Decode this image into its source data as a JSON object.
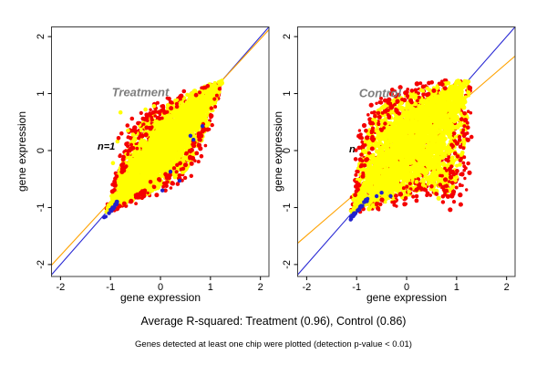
{
  "figure": {
    "background": "#ffffff"
  },
  "captions": {
    "r_squared": "Average R-squared: Treatment (0.96), Control (0.86)",
    "note": "Genes detected at least one chip were plotted (detection p-value < 0.01)"
  },
  "chart_data": [
    {
      "type": "scatter",
      "title": "Treatment",
      "title_color": "#7d7d7d",
      "annotation": "n=1",
      "xlabel": "gene expression",
      "ylabel": "gene expression",
      "xlim": [
        -2.18,
        2.17
      ],
      "ylim": [
        -2.21,
        2.17
      ],
      "xticks": [
        -2,
        -1,
        0,
        1,
        2
      ],
      "yticks": [
        -2,
        -1,
        0,
        1,
        2
      ],
      "r_squared": 0.96,
      "lines": [
        {
          "name": "identity",
          "color": "#2b2bd4",
          "slope": 1,
          "intercept": 0
        },
        {
          "name": "fit",
          "color": "#ffa200",
          "slope": 0.95,
          "intercept": 0.06
        }
      ],
      "point_colors": {
        "dense": "#ffff00",
        "flagged": "#f40000",
        "low_detect": "#2222cc"
      },
      "cloud": {
        "seed": 11,
        "center": [
          0.075,
          0.075
        ],
        "half_length": 1.18,
        "sigma_perp": 0.26,
        "skew_hi": 1.05,
        "skew_lo": 1.05,
        "n_dense": 2600,
        "n_flag_under": 700,
        "n_flag_edge": 160
      },
      "blue_clump": {
        "x_range": [
          -1.13,
          -0.86
        ],
        "offset": -0.05,
        "jitter": 0.05,
        "n": 15
      },
      "outliers": {
        "yellow": [
          [
            -0.8,
            0.67
          ],
          [
            -0.86,
            0.16
          ],
          [
            -0.65,
            0.35
          ],
          [
            -0.3,
            0.72
          ],
          [
            -0.13,
            0.78
          ],
          [
            -0.55,
            0.28
          ],
          [
            -0.95,
            -0.22
          ],
          [
            -0.42,
            0.45
          ]
        ],
        "red": [
          [
            -0.78,
            0.3
          ],
          [
            -0.66,
            0.44
          ],
          [
            -0.57,
            0.56
          ],
          [
            -0.5,
            0.34
          ],
          [
            -0.45,
            0.48
          ],
          [
            -0.6,
            0.22
          ],
          [
            -0.35,
            0.56
          ],
          [
            -0.28,
            0.63
          ],
          [
            -0.84,
            0.22
          ],
          [
            0.05,
            0.78
          ],
          [
            0.33,
            0.77
          ],
          [
            0.12,
            -0.62
          ],
          [
            0.25,
            -0.58
          ],
          [
            0.1,
            -0.7
          ],
          [
            -0.2,
            -0.55
          ]
        ],
        "blue": [
          [
            0.84,
            0.43
          ],
          [
            0.66,
            0.19
          ],
          [
            0.6,
            0.26
          ],
          [
            0.2,
            -0.37
          ],
          [
            0.38,
            -0.53
          ],
          [
            0.04,
            -0.7
          ]
        ]
      }
    },
    {
      "type": "scatter",
      "title": "Control",
      "title_color": "#7d7d7d",
      "annotation": "n",
      "xlabel": "gene expression",
      "ylabel": "gene expression",
      "xlim": [
        -2.18,
        2.17
      ],
      "ylim": [
        -2.21,
        2.17
      ],
      "xticks": [
        -2,
        -1,
        0,
        1,
        2
      ],
      "yticks": [
        -2,
        -1,
        0,
        1,
        2
      ],
      "r_squared": 0.86,
      "lines": [
        {
          "name": "identity",
          "color": "#2b2bd4",
          "slope": 1,
          "intercept": 0
        },
        {
          "name": "fit",
          "color": "#ffa200",
          "slope": 0.755,
          "intercept": 0.02
        }
      ],
      "point_colors": {
        "dense": "#ffff00",
        "flagged": "#f40000",
        "low_detect": "#2222cc"
      },
      "cloud": {
        "seed": 23,
        "center": [
          0.075,
          0.075
        ],
        "half_length": 1.18,
        "sigma_perp": 0.36,
        "skew_hi": 1.15,
        "skew_lo": 1.45,
        "n_dense": 2900,
        "n_flag_under": 760,
        "n_flag_edge": 170
      },
      "blue_clump": {
        "x_range": [
          -1.14,
          -0.78
        ],
        "offset": -0.07,
        "jitter": 0.05,
        "n": 24
      },
      "outliers": {
        "yellow": [
          [
            0.87,
            1.04
          ],
          [
            0.65,
            -0.62
          ],
          [
            0.33,
            -0.6
          ],
          [
            0.05,
            -0.72
          ],
          [
            -0.62,
            0.52
          ],
          [
            0.2,
            -0.55
          ]
        ],
        "red": [
          [
            0.18,
            1.06
          ],
          [
            0.3,
            -0.68
          ],
          [
            0.5,
            -0.63
          ],
          [
            0.67,
            -0.6
          ],
          [
            0.8,
            -0.62
          ],
          [
            0.42,
            -0.75
          ],
          [
            0.2,
            -0.8
          ],
          [
            0.77,
            -0.72
          ],
          [
            0.95,
            0.3
          ],
          [
            0.9,
            0.1
          ],
          [
            0.97,
            -0.05
          ],
          [
            -0.95,
            0.05
          ],
          [
            -0.9,
            0.22
          ],
          [
            -1.02,
            -0.15
          ],
          [
            -0.35,
            0.58
          ],
          [
            -0.15,
            0.65
          ]
        ],
        "blue": [
          [
            -0.6,
            -0.8
          ],
          [
            -0.5,
            -0.74
          ],
          [
            -0.32,
            -0.8
          ]
        ]
      }
    }
  ]
}
